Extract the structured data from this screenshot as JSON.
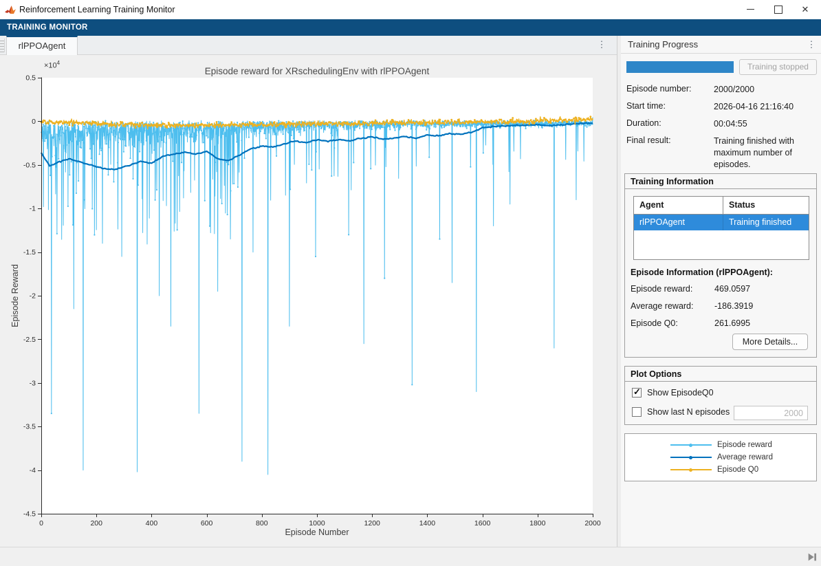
{
  "window": {
    "title": "Reinforcement Learning Training Monitor"
  },
  "ribbon": {
    "label": "TRAINING MONITOR"
  },
  "tabs": [
    {
      "label": "rlPPOAgent"
    }
  ],
  "colors": {
    "ribbon_blue": "#0e4e7f",
    "progress_blue": "#2e86c8",
    "selection_blue": "#2e8bdb",
    "episode_reward": "#4DBEEE",
    "average_reward": "#0072BD",
    "episode_q0": "#EDB120"
  },
  "progress_panel": {
    "title": "Training Progress",
    "progress_percent": 100,
    "stop_button": "Training stopped",
    "fields": [
      {
        "label": "Episode number:",
        "value": "2000/2000"
      },
      {
        "label": "Start time:",
        "value": "2026-04-16 21:16:40"
      },
      {
        "label": "Duration:",
        "value": "00:04:55"
      },
      {
        "label": "Final result:",
        "value": "Training finished with maximum number of episodes."
      }
    ]
  },
  "training_information": {
    "title": "Training Information",
    "table": {
      "headers": [
        "Agent",
        "Status"
      ],
      "rows": [
        {
          "agent": "rlPPOAgent",
          "status": "Training finished",
          "selected": true
        }
      ]
    },
    "episode_info_title": "Episode Information (rlPPOAgent):",
    "fields": [
      {
        "label": "Episode reward:",
        "value": "469.0597"
      },
      {
        "label": "Average reward:",
        "value": "-186.3919"
      },
      {
        "label": "Episode Q0:",
        "value": "261.6995"
      }
    ],
    "more_details_button": "More Details..."
  },
  "plot_options": {
    "title": "Plot Options",
    "show_q0": {
      "label": "Show EpisodeQ0",
      "checked": true
    },
    "show_last_n": {
      "label": "Show last N episodes",
      "checked": false,
      "value": "2000"
    }
  },
  "chart_data": {
    "type": "line",
    "title": "Episode reward for XRschedulingEnv with rlPPOAgent",
    "xlabel": "Episode Number",
    "ylabel": "Episode Reward",
    "multiplier_base": "×10",
    "multiplier_exp": "4",
    "xlim": [
      0,
      2000
    ],
    "ylim": [
      -45000,
      5000
    ],
    "grid": false,
    "legend_position": "right-panel",
    "x_tick_values": [
      0,
      200,
      400,
      600,
      800,
      1000,
      1200,
      1400,
      1600,
      1800,
      2000
    ],
    "x_tick_labels": [
      "0",
      "200",
      "400",
      "600",
      "800",
      "1000",
      "1200",
      "1400",
      "1600",
      "1800",
      "2000"
    ],
    "y_tick_values": [
      5000,
      0,
      -5000,
      -10000,
      -15000,
      -20000,
      -25000,
      -30000,
      -35000,
      -40000,
      -45000
    ],
    "y_tick_labels": [
      "0.5",
      "0",
      "-0.5",
      "-1",
      "-1.5",
      "-2",
      "-2.5",
      "-3",
      "-3.5",
      "-4",
      "-4.5"
    ],
    "series": [
      {
        "name": "Episode reward",
        "color": "#4DBEEE",
        "style": "noisy"
      },
      {
        "name": "Average reward",
        "color": "#0072BD",
        "style": "smooth"
      },
      {
        "name": "Episode Q0",
        "color": "#EDB120",
        "style": "band"
      }
    ],
    "episode_reward_gen": {
      "seed": 11,
      "sigma_points": [
        [
          0,
          2500
        ],
        [
          350,
          2500
        ],
        [
          700,
          1600
        ],
        [
          1000,
          950
        ],
        [
          1400,
          600
        ],
        [
          2000,
          420
        ]
      ],
      "base_jitter": 200,
      "medium_spike": {
        "prob_early": 0.1,
        "prob_mid": 0.05,
        "prob_late": 0.025,
        "max_early": 11000,
        "max_mid": 7000,
        "max_late": 5000
      },
      "spikes": [
        [
          37,
          -33500
        ],
        [
          118,
          -21500
        ],
        [
          152,
          -40000
        ],
        [
          222,
          -14000
        ],
        [
          292,
          -15500
        ],
        [
          348,
          -40200
        ],
        [
          428,
          -20000
        ],
        [
          470,
          -23500
        ],
        [
          572,
          -33500
        ],
        [
          640,
          -19500
        ],
        [
          728,
          -39000
        ],
        [
          768,
          -15000
        ],
        [
          822,
          -40500
        ],
        [
          900,
          -23500
        ],
        [
          995,
          -15500
        ],
        [
          1115,
          -13000
        ],
        [
          1170,
          -25500
        ],
        [
          1245,
          -18000
        ],
        [
          1345,
          -30200
        ],
        [
          1445,
          -13500
        ],
        [
          1490,
          -18500
        ],
        [
          1578,
          -31000
        ],
        [
          1640,
          -12000
        ],
        [
          1700,
          -9500
        ],
        [
          1860,
          -26000
        ],
        [
          1940,
          -9000
        ]
      ],
      "final_value": 469.0597
    },
    "average_reward_points": [
      [
        0,
        -3600
      ],
      [
        30,
        -5100
      ],
      [
        60,
        -4700
      ],
      [
        100,
        -4300
      ],
      [
        140,
        -4650
      ],
      [
        180,
        -5000
      ],
      [
        230,
        -5450
      ],
      [
        270,
        -5500
      ],
      [
        320,
        -5050
      ],
      [
        360,
        -4600
      ],
      [
        400,
        -4800
      ],
      [
        440,
        -4050
      ],
      [
        480,
        -3750
      ],
      [
        520,
        -3550
      ],
      [
        560,
        -3750
      ],
      [
        600,
        -3450
      ],
      [
        640,
        -4300
      ],
      [
        680,
        -4500
      ],
      [
        720,
        -3850
      ],
      [
        760,
        -3150
      ],
      [
        800,
        -2850
      ],
      [
        840,
        -2950
      ],
      [
        880,
        -2600
      ],
      [
        920,
        -2250
      ],
      [
        960,
        -2450
      ],
      [
        1000,
        -2100
      ],
      [
        1040,
        -2300
      ],
      [
        1080,
        -2100
      ],
      [
        1120,
        -2250
      ],
      [
        1160,
        -1950
      ],
      [
        1200,
        -1800
      ],
      [
        1240,
        -2050
      ],
      [
        1280,
        -1900
      ],
      [
        1320,
        -1750
      ],
      [
        1360,
        -1950
      ],
      [
        1400,
        -1550
      ],
      [
        1440,
        -1650
      ],
      [
        1480,
        -1400
      ],
      [
        1520,
        -1500
      ],
      [
        1560,
        -1250
      ],
      [
        1600,
        -750
      ],
      [
        1650,
        -600
      ],
      [
        1700,
        -500
      ],
      [
        1750,
        -430
      ],
      [
        1800,
        -400
      ],
      [
        1840,
        -520
      ],
      [
        1880,
        -430
      ],
      [
        1920,
        -330
      ],
      [
        1960,
        -240
      ],
      [
        2000,
        -186
      ]
    ],
    "episode_q0_points": [
      [
        0,
        0
      ],
      [
        100,
        -120
      ],
      [
        200,
        -260
      ],
      [
        300,
        -360
      ],
      [
        400,
        -430
      ],
      [
        500,
        -460
      ],
      [
        600,
        -480
      ],
      [
        700,
        -410
      ],
      [
        800,
        -380
      ],
      [
        900,
        -310
      ],
      [
        1000,
        -260
      ],
      [
        1100,
        -280
      ],
      [
        1200,
        -210
      ],
      [
        1300,
        -160
      ],
      [
        1400,
        -150
      ],
      [
        1500,
        -110
      ],
      [
        1600,
        -60
      ],
      [
        1700,
        -10
      ],
      [
        1800,
        40
      ],
      [
        1900,
        110
      ],
      [
        2000,
        262
      ]
    ],
    "q0_noise_sd": 150
  }
}
